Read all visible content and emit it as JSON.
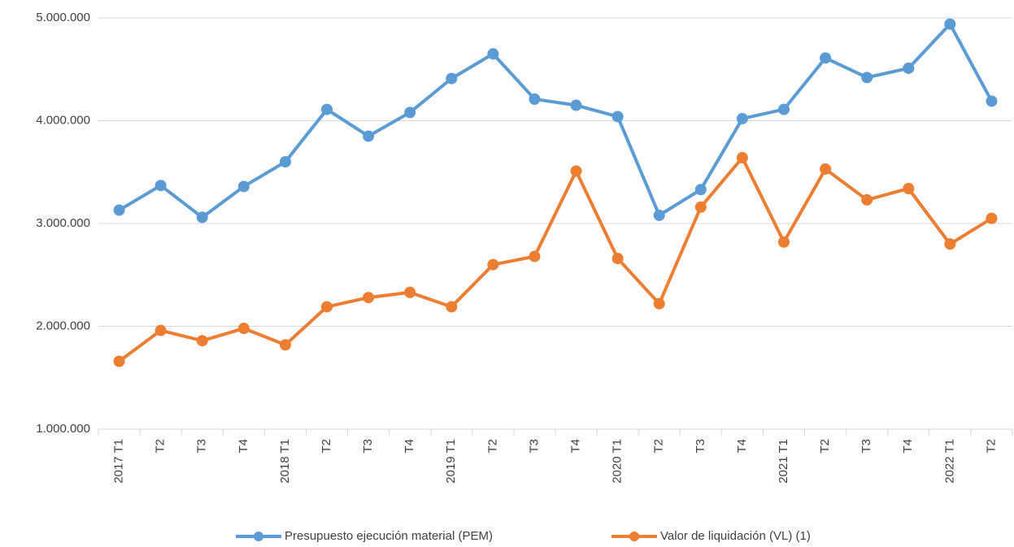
{
  "chart_data": {
    "type": "line",
    "categories": [
      "2017 T1",
      "T2",
      "T3",
      "T4",
      "2018 T1",
      "T2",
      "T3",
      "T4",
      "2019 T1",
      "T2",
      "T3",
      "T4",
      "2020 T1",
      "T2",
      "T3",
      "T4",
      "2021 T1",
      "T2",
      "T3",
      "T4",
      "2022 T1",
      "T2"
    ],
    "series": [
      {
        "name": "Presupuesto ejecución material (PEM)",
        "color": "#5b9bd5",
        "values": [
          3130000,
          3370000,
          3060000,
          3360000,
          3600000,
          4110000,
          3850000,
          4080000,
          4410000,
          4650000,
          4210000,
          4150000,
          4040000,
          3080000,
          3330000,
          4020000,
          4110000,
          4610000,
          4420000,
          4510000,
          4940000,
          4190000
        ]
      },
      {
        "name": "Valor de liquidación (VL) (1)",
        "color": "#ed7d31",
        "values": [
          1660000,
          1960000,
          1860000,
          1980000,
          1820000,
          2190000,
          2280000,
          2330000,
          2190000,
          2600000,
          2680000,
          3510000,
          2660000,
          2220000,
          3160000,
          3640000,
          2820000,
          3530000,
          3230000,
          3340000,
          2800000,
          3050000
        ]
      }
    ],
    "ylim": [
      1000000,
      5000000
    ],
    "yticks": [
      {
        "value": 1000000,
        "label": "1.000.000"
      },
      {
        "value": 2000000,
        "label": "2.000.000"
      },
      {
        "value": 3000000,
        "label": "3.000.000"
      },
      {
        "value": 4000000,
        "label": "4.000.000"
      },
      {
        "value": 5000000,
        "label": "5.000.000"
      }
    ],
    "grid": true,
    "legend": "bottom"
  }
}
